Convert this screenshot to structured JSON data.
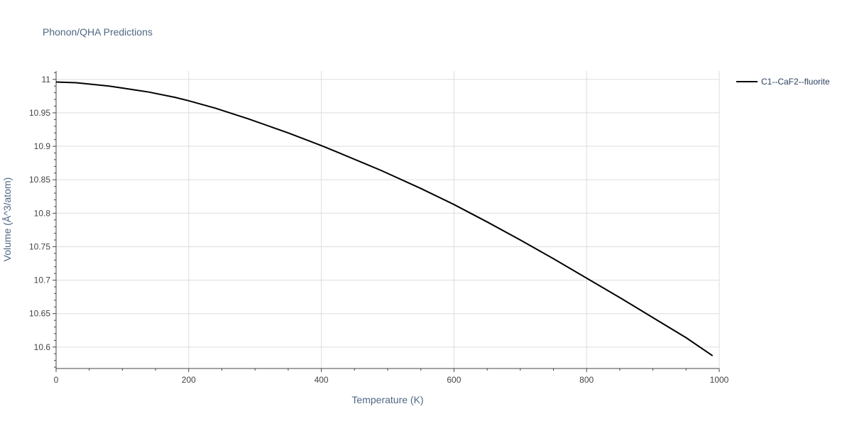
{
  "chart_data": {
    "type": "line",
    "title": "Phonon/QHA Predictions",
    "xlabel": "Temperature (K)",
    "ylabel": "Volume (Å^3/atom)",
    "xlim": [
      0,
      1000
    ],
    "ylim": [
      10.568,
      11.0125
    ],
    "xticks": [
      0,
      200,
      400,
      600,
      800,
      1000
    ],
    "xtick_labels": [
      "0",
      "200",
      "400",
      "600",
      "800",
      "1000"
    ],
    "yticks": [
      10.6,
      10.65,
      10.7,
      10.75,
      10.8,
      10.85,
      10.9,
      10.95,
      11
    ],
    "ytick_labels": [
      "10.6",
      "10.65",
      "10.7",
      "10.75",
      "10.8",
      "10.85",
      "10.9",
      "10.95",
      "11"
    ],
    "grid": true,
    "legend_position": "top-right",
    "series": [
      {
        "name": "C1--CaF2--fluorite",
        "color": "#000000",
        "x": [
          0,
          30,
          50,
          80,
          100,
          140,
          180,
          200,
          240,
          290,
          350,
          400,
          420,
          490,
          550,
          600,
          650,
          700,
          750,
          800,
          850,
          900,
          950,
          990
        ],
        "y": [
          10.996,
          10.995,
          10.993,
          10.99,
          10.987,
          10.981,
          10.973,
          10.968,
          10.957,
          10.941,
          10.92,
          10.901,
          10.893,
          10.864,
          10.837,
          10.813,
          10.787,
          10.76,
          10.732,
          10.703,
          10.674,
          10.644,
          10.614,
          10.587
        ]
      }
    ]
  }
}
